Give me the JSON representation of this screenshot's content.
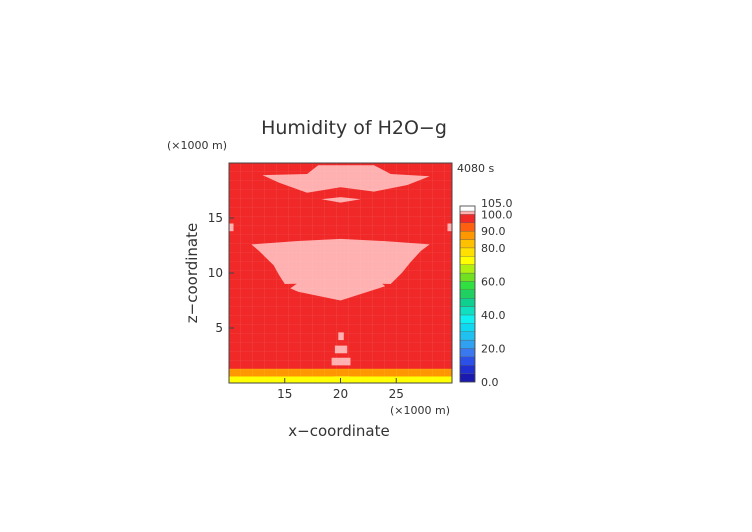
{
  "chart_data": {
    "type": "heatmap",
    "title": "Humidity of H2O−g",
    "xlabel": "x−coordinate",
    "ylabel": "z−coordinate",
    "x_unit": "(×1000 m)",
    "y_unit": "(×1000 m)",
    "time_label": "4080 s",
    "xlim": [
      10,
      30
    ],
    "ylim": [
      0,
      20
    ],
    "x_ticks": [
      15,
      20,
      25
    ],
    "y_ticks": [
      5,
      10,
      15
    ],
    "grid": false,
    "legend_position": "right",
    "background_value": 95,
    "regions": [
      {
        "name": "top-saturated-band",
        "value": 101,
        "points": [
          [
            13,
            18.9
          ],
          [
            17,
            19
          ],
          [
            18,
            19.8
          ],
          [
            23,
            19.8
          ],
          [
            24.5,
            19
          ],
          [
            28,
            18.8
          ],
          [
            26,
            18
          ],
          [
            23,
            17.4
          ],
          [
            20,
            17.8
          ],
          [
            17,
            17.3
          ],
          [
            14.5,
            18.2
          ]
        ]
      },
      {
        "name": "small-saturated-lens",
        "value": 101,
        "points": [
          [
            18.3,
            16.7
          ],
          [
            20,
            16.9
          ],
          [
            21.8,
            16.7
          ],
          [
            20,
            16.4
          ]
        ]
      },
      {
        "name": "mid-saturated-layer",
        "value": 101,
        "points": [
          [
            12,
            12.6
          ],
          [
            16,
            12.9
          ],
          [
            20,
            13.1
          ],
          [
            24,
            12.9
          ],
          [
            28,
            12.6
          ],
          [
            27.2,
            12
          ],
          [
            26.3,
            11
          ],
          [
            25.5,
            10
          ],
          [
            24.5,
            9
          ],
          [
            20,
            9.1
          ],
          [
            15,
            9
          ],
          [
            14.5,
            9.8
          ],
          [
            14,
            10.7
          ],
          [
            13.3,
            11.4
          ],
          [
            12.7,
            12
          ]
        ]
      },
      {
        "name": "lower-saturated-bulge",
        "value": 101,
        "points": [
          [
            15.5,
            8.6
          ],
          [
            17,
            9.7
          ],
          [
            20,
            10.2
          ],
          [
            23,
            9.7
          ],
          [
            24,
            8.8
          ],
          [
            20,
            7.5
          ],
          [
            16.2,
            8.3
          ]
        ]
      },
      {
        "name": "left-edge-patch",
        "value": 101,
        "points": [
          [
            10,
            14.5
          ],
          [
            10.4,
            14.5
          ],
          [
            10.4,
            13.8
          ],
          [
            10,
            13.8
          ]
        ]
      },
      {
        "name": "right-edge-patch",
        "value": 101,
        "points": [
          [
            29.6,
            14.5
          ],
          [
            30,
            14.5
          ],
          [
            30,
            13.8
          ],
          [
            29.6,
            13.8
          ]
        ]
      },
      {
        "name": "plume-column-1",
        "value": 101,
        "points": [
          [
            19.8,
            4.6
          ],
          [
            20.3,
            4.6
          ],
          [
            20.3,
            3.9
          ],
          [
            19.8,
            3.9
          ]
        ]
      },
      {
        "name": "plume-column-2",
        "value": 101,
        "points": [
          [
            19.5,
            3.4
          ],
          [
            20.6,
            3.4
          ],
          [
            20.6,
            2.7
          ],
          [
            19.5,
            2.7
          ]
        ]
      },
      {
        "name": "plume-column-3",
        "value": 101,
        "points": [
          [
            19.2,
            2.3
          ],
          [
            20.9,
            2.3
          ],
          [
            20.9,
            1.6
          ],
          [
            19.2,
            1.6
          ]
        ]
      },
      {
        "name": "plume-column-4",
        "value": 101,
        "points": [
          [
            19.4,
            1.1
          ],
          [
            20.8,
            1.1
          ],
          [
            20.8,
            0.5
          ],
          [
            19.4,
            0.5
          ]
        ]
      },
      {
        "name": "near-surface-band",
        "value": 85,
        "points": [
          [
            10,
            1.3
          ],
          [
            30,
            1.3
          ],
          [
            30,
            0.6
          ],
          [
            10,
            0.6
          ]
        ]
      },
      {
        "name": "surface-band",
        "value": 70,
        "points": [
          [
            10,
            0.6
          ],
          [
            30,
            0.6
          ],
          [
            30,
            0
          ],
          [
            10,
            0
          ]
        ]
      }
    ],
    "colorbar": {
      "labels": [
        "105.0",
        "100.0",
        "90.0",
        "80.0",
        "60.0",
        "40.0",
        "20.0",
        "0.0"
      ],
      "label_values": [
        105,
        100,
        90,
        80,
        60,
        40,
        20,
        0
      ],
      "bands": [
        {
          "from": 0,
          "to": 5,
          "color": "#1a1ab0"
        },
        {
          "from": 5,
          "to": 10,
          "color": "#2030d0"
        },
        {
          "from": 10,
          "to": 15,
          "color": "#2a50e8"
        },
        {
          "from": 15,
          "to": 20,
          "color": "#3a78f0"
        },
        {
          "from": 20,
          "to": 25,
          "color": "#30a0f0"
        },
        {
          "from": 25,
          "to": 30,
          "color": "#20c0f0"
        },
        {
          "from": 30,
          "to": 35,
          "color": "#10d8f0"
        },
        {
          "from": 35,
          "to": 40,
          "color": "#10f0f0"
        },
        {
          "from": 40,
          "to": 45,
          "color": "#10e0c0"
        },
        {
          "from": 45,
          "to": 50,
          "color": "#10d090"
        },
        {
          "from": 50,
          "to": 55,
          "color": "#20d060"
        },
        {
          "from": 55,
          "to": 60,
          "color": "#30e040"
        },
        {
          "from": 60,
          "to": 65,
          "color": "#70e020"
        },
        {
          "from": 65,
          "to": 70,
          "color": "#b0f010"
        },
        {
          "from": 70,
          "to": 75,
          "color": "#ffff00"
        },
        {
          "from": 75,
          "to": 80,
          "color": "#ffe000"
        },
        {
          "from": 80,
          "to": 85,
          "color": "#ffc000"
        },
        {
          "from": 85,
          "to": 90,
          "color": "#ff9800"
        },
        {
          "from": 90,
          "to": 95,
          "color": "#ff6010"
        },
        {
          "from": 95,
          "to": 100,
          "color": "#f02828"
        },
        {
          "from": 100,
          "to": 102,
          "color": "#ffb0b0"
        },
        {
          "from": 102,
          "to": 105,
          "color": "#ffffff"
        }
      ]
    }
  }
}
